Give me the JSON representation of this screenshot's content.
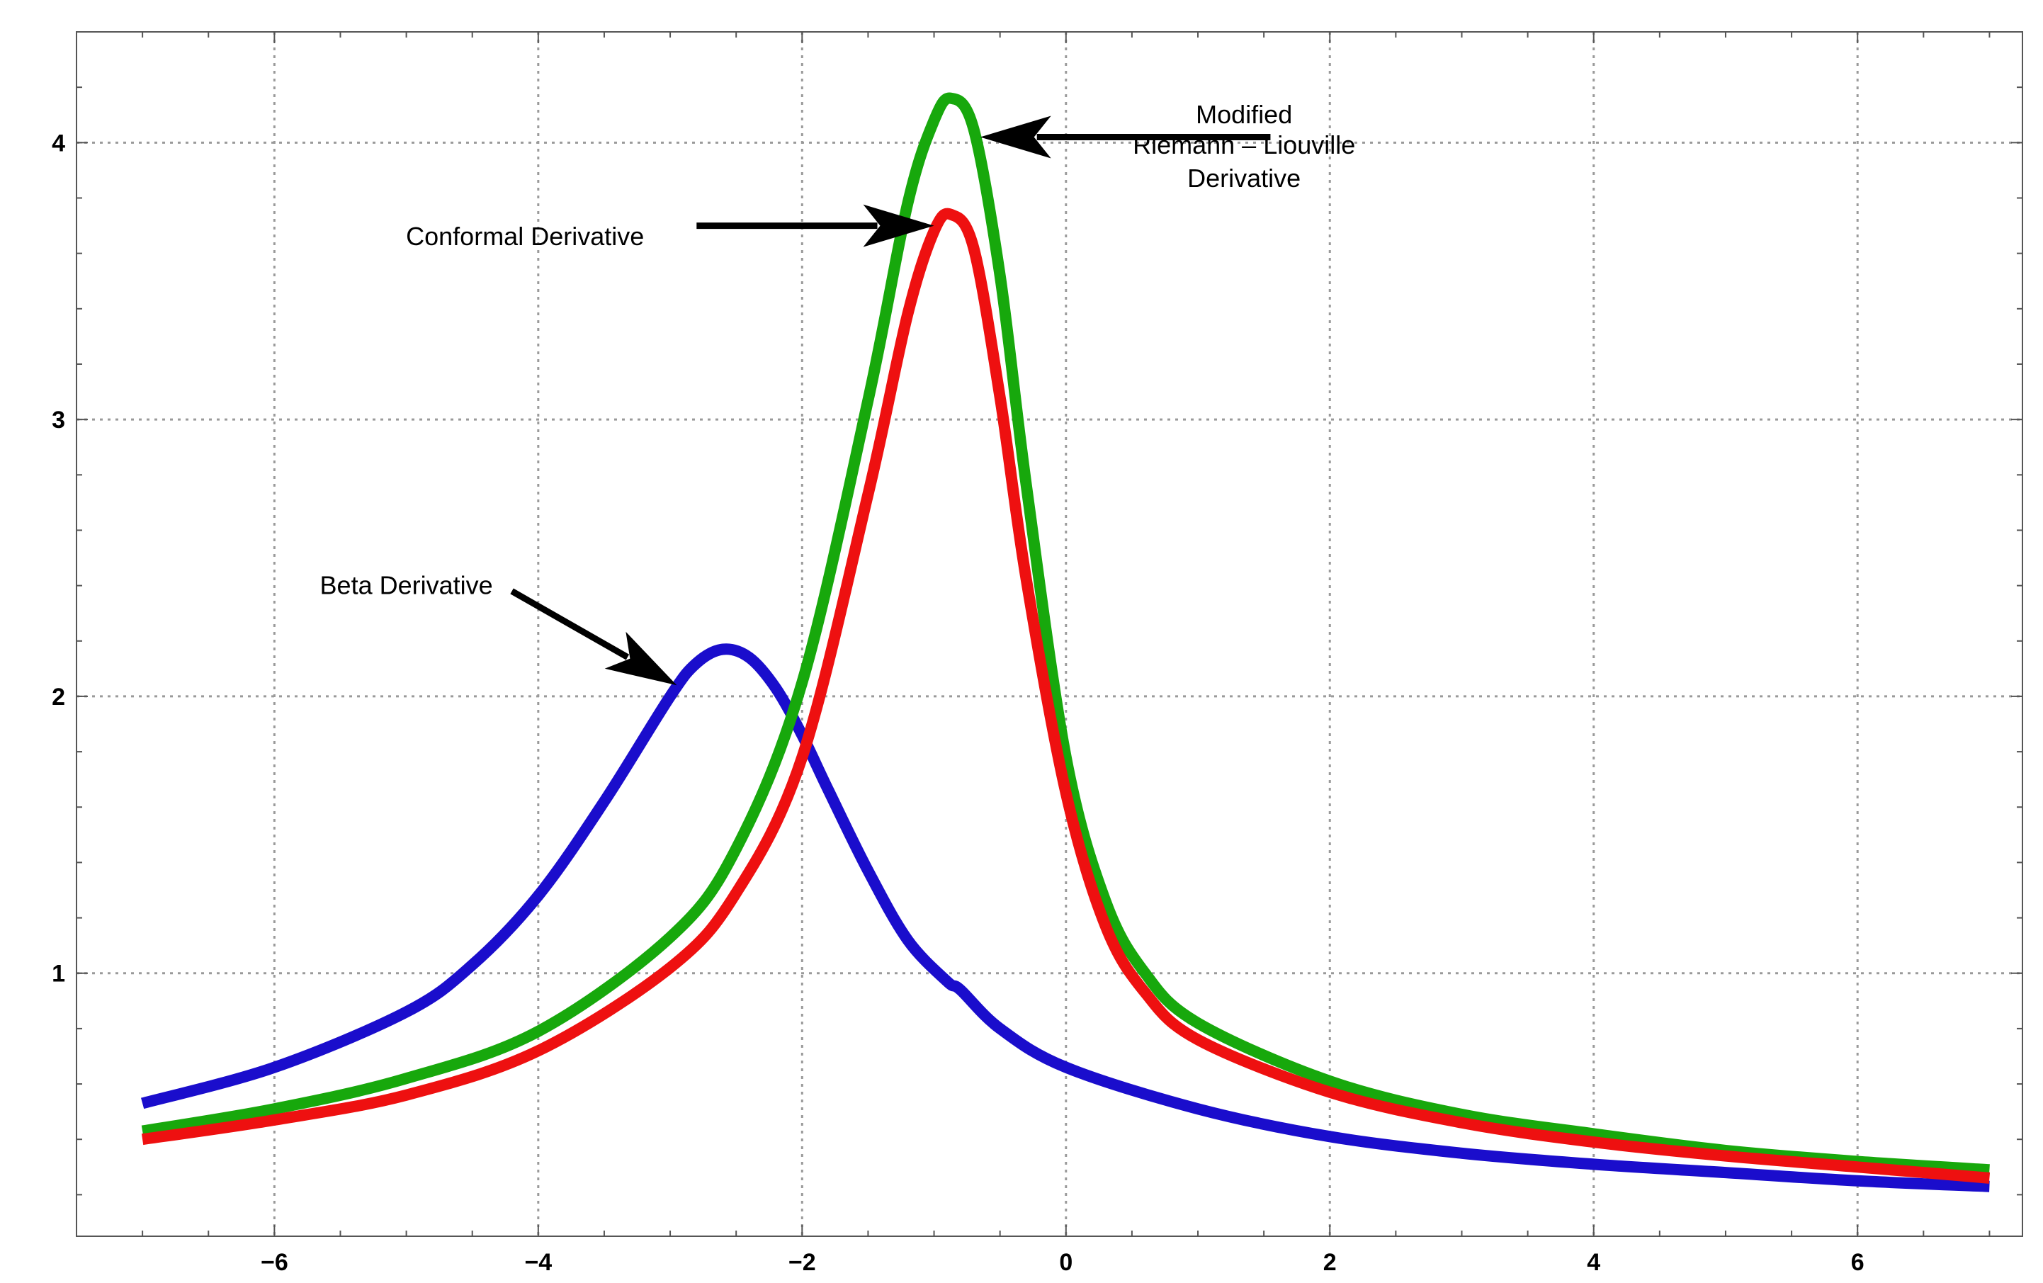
{
  "chart_data": {
    "type": "line",
    "title": "",
    "xlabel": "",
    "ylabel": "",
    "xlim": [
      -7.5,
      7.25
    ],
    "ylim": [
      0.05,
      4.4
    ],
    "x_ticks": [
      -6,
      -4,
      -2,
      0,
      2,
      4,
      6
    ],
    "x_tick_labels": [
      "−6",
      "−4",
      "−2",
      "0",
      "2",
      "4",
      "6"
    ],
    "y_ticks": [
      1,
      2,
      3,
      4
    ],
    "y_tick_labels": [
      "1",
      "2",
      "3",
      "4"
    ],
    "grid": true,
    "series": [
      {
        "color": "#1a0dcc",
        "x": [
          -7.0,
          -6.0,
          -5.0,
          -4.5,
          -4.0,
          -3.5,
          -3.0,
          -2.8,
          -2.6,
          -2.4,
          -2.2,
          -2.0,
          -1.8,
          -1.5,
          -1.2,
          -0.9,
          -0.8,
          -0.5,
          0.0,
          1.0,
          2.0,
          3.0,
          4.0,
          5.0,
          6.0,
          7.0
        ],
        "y": [
          0.53,
          0.66,
          0.86,
          1.03,
          1.28,
          1.62,
          2.0,
          2.12,
          2.17,
          2.14,
          2.03,
          1.86,
          1.66,
          1.37,
          1.12,
          0.97,
          0.94,
          0.8,
          0.66,
          0.51,
          0.41,
          0.35,
          0.31,
          0.28,
          0.25,
          0.23
        ]
      },
      {
        "color": "#17a80c",
        "x": [
          -7.0,
          -6.0,
          -5.0,
          -4.0,
          -3.0,
          -2.5,
          -2.0,
          -1.5,
          -1.2,
          -1.0,
          -0.87,
          -0.7,
          -0.5,
          -0.3,
          0.0,
          0.3,
          0.6,
          1.0,
          2.0,
          3.0,
          4.0,
          5.0,
          6.0,
          7.0
        ],
        "y": [
          0.43,
          0.51,
          0.62,
          0.79,
          1.13,
          1.45,
          2.05,
          3.07,
          3.78,
          4.08,
          4.16,
          4.05,
          3.52,
          2.76,
          1.78,
          1.26,
          1.0,
          0.82,
          0.61,
          0.49,
          0.42,
          0.36,
          0.32,
          0.29
        ]
      },
      {
        "color": "#ee1010",
        "x": [
          -7.0,
          -6.0,
          -5.0,
          -4.0,
          -3.0,
          -2.5,
          -2.0,
          -1.5,
          -1.2,
          -1.0,
          -0.87,
          -0.7,
          -0.5,
          -0.3,
          0.0,
          0.3,
          0.6,
          1.0,
          2.0,
          3.0,
          4.0,
          5.0,
          6.0,
          7.0
        ],
        "y": [
          0.4,
          0.47,
          0.56,
          0.72,
          1.02,
          1.29,
          1.78,
          2.73,
          3.38,
          3.68,
          3.74,
          3.62,
          3.08,
          2.42,
          1.65,
          1.17,
          0.93,
          0.76,
          0.57,
          0.46,
          0.39,
          0.34,
          0.3,
          0.26
        ]
      }
    ],
    "annotations": [
      {
        "text": "Modified",
        "x": 1.35,
        "y": 4.1
      },
      {
        "text": "Riemann – Liouville",
        "x": 1.35,
        "y": 3.99
      },
      {
        "text": "Derivative",
        "x": 1.35,
        "y": 3.87
      },
      {
        "text": "Conformal Derivative",
        "x": -4.1,
        "y": 3.66
      },
      {
        "text": "Beta Derivative",
        "x": -5.0,
        "y": 2.4
      }
    ],
    "arrows": [
      {
        "from": [
          1.55,
          4.02
        ],
        "to": [
          -0.65,
          4.02
        ]
      },
      {
        "from": [
          -2.8,
          3.7
        ],
        "to": [
          -1.0,
          3.7
        ]
      },
      {
        "from": [
          -4.2,
          2.38
        ],
        "to": [
          -2.95,
          2.04
        ]
      }
    ]
  }
}
